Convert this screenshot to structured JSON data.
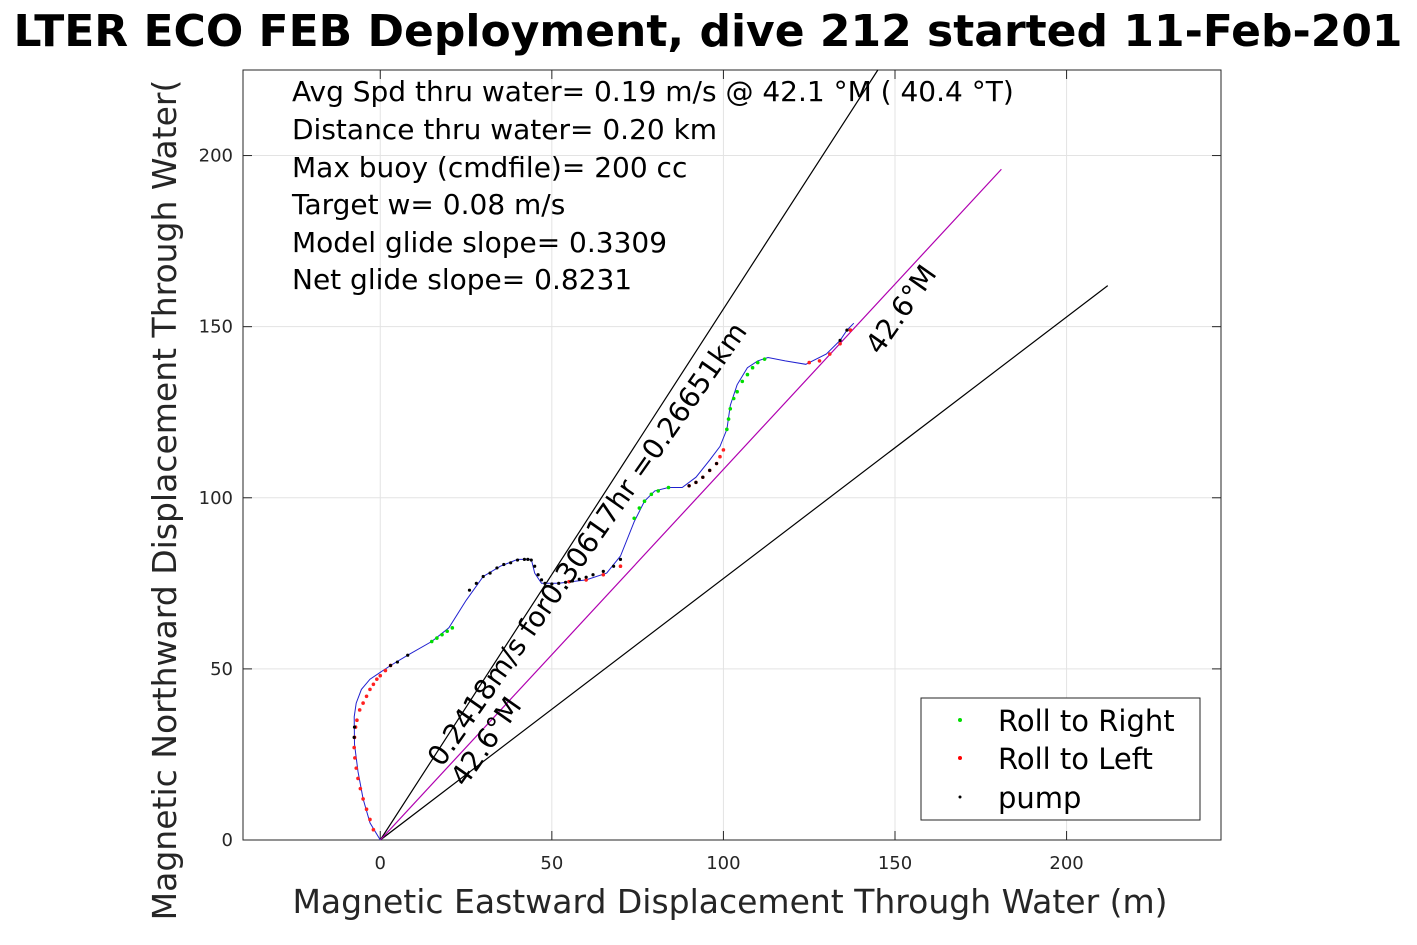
{
  "chart_data": {
    "type": "line",
    "title": "LTER ECO FEB Deployment, dive 212 started 11-Feb-201",
    "xlabel": "Magnetic Eastward Displacement Through Water (m)",
    "ylabel": "Magnetic Northward Displacement Through Water(",
    "xlim": [
      -40,
      245
    ],
    "ylim": [
      0,
      225
    ],
    "xticks": [
      0,
      50,
      100,
      150,
      200
    ],
    "yticks": [
      0,
      50,
      100,
      150,
      200
    ],
    "xtick_labels": [
      "0",
      "50",
      "100",
      "150",
      "200"
    ],
    "ytick_labels": [
      "0",
      "50",
      "100",
      "150",
      "200"
    ],
    "grid": true,
    "info_lines": [
      "Avg Spd thru water=  0.19 m/s @  42.1 °M ( 40.4 °T)",
      "Distance thru water=  0.20 km",
      "Max buoy (cmdfile)= 200 cc",
      "Target w= 0.08 m/s",
      "Model glide slope= 0.3309",
      "Net glide slope= 0.8231"
    ],
    "annotations": {
      "speed_text": "0.2418m/s for0.30617hr =0.26651km",
      "heading_low": "42.6°M",
      "heading_high": "42.6°M"
    },
    "reference_lines": [
      {
        "name": "upper",
        "x": [
          0,
          145
        ],
        "y": [
          0,
          225
        ],
        "color": "#000000"
      },
      {
        "name": "lower",
        "x": [
          0,
          212
        ],
        "y": [
          0,
          162
        ],
        "color": "#000000"
      },
      {
        "name": "heading",
        "x": [
          0,
          181
        ],
        "y": [
          0,
          196
        ],
        "color": "#b000b0"
      }
    ],
    "series": [
      {
        "name": "track",
        "color": "#2020d0",
        "x": [
          0,
          -3,
          -5,
          -6.5,
          -7.5,
          -7.6,
          -7,
          -5.5,
          -3,
          0,
          3,
          8,
          15,
          20,
          25,
          30,
          35,
          40,
          44,
          45,
          47,
          52,
          60,
          66,
          70,
          74,
          77,
          80,
          84,
          88,
          92,
          96,
          99,
          101,
          102,
          104,
          107,
          110,
          113,
          118,
          124,
          130,
          134,
          136,
          138
        ],
        "y": [
          0,
          5,
          12,
          20,
          28,
          36,
          40,
          44,
          47,
          49,
          51,
          54,
          58,
          62,
          70,
          77,
          80,
          82,
          82,
          78,
          75,
          75,
          76,
          78,
          83,
          93,
          99,
          102,
          103,
          103,
          106,
          111,
          115,
          120,
          127,
          133,
          138,
          140,
          141,
          140,
          139,
          142,
          146,
          149,
          151
        ]
      },
      {
        "name": "Roll to Right",
        "color": "#00dd00",
        "x": [
          15,
          16.5,
          18,
          19.5,
          21,
          74,
          75.5,
          77,
          79,
          81,
          84,
          101,
          101.5,
          102,
          103,
          104,
          105.5,
          107,
          108.5,
          110,
          112
        ],
        "y": [
          58,
          59,
          60,
          61,
          62,
          94,
          97,
          99,
          101,
          102,
          103,
          120,
          123,
          126,
          129,
          131,
          134,
          136,
          138,
          139.5,
          140.5
        ]
      },
      {
        "name": "Roll to Left",
        "color": "#ff2020",
        "x": [
          -2,
          -3,
          -4,
          -5,
          -5.8,
          -6.5,
          -7,
          -7.4,
          -7.6,
          -7.5,
          -7.2,
          -6.8,
          -6,
          -5,
          -4,
          -3,
          -2,
          -1,
          0,
          1.5,
          3,
          55,
          60,
          65,
          70,
          90,
          92,
          94,
          96,
          98,
          99,
          100,
          125,
          128,
          131,
          134,
          137
        ],
        "y": [
          3,
          6,
          9,
          12,
          15,
          18,
          21,
          24,
          27,
          30,
          33,
          35,
          38,
          40,
          42,
          44,
          45.5,
          47,
          48,
          49.5,
          51,
          75.5,
          76,
          77.5,
          80,
          103.5,
          104.5,
          106,
          108,
          110,
          112,
          114,
          139.5,
          140,
          142,
          145,
          149
        ]
      },
      {
        "name": "pump",
        "color": "#000000",
        "x": [
          -7.5,
          -7.6,
          3,
          5,
          8,
          26,
          28,
          30,
          32,
          34,
          36,
          38,
          40,
          42,
          43,
          44,
          45,
          46,
          47,
          48,
          50,
          52,
          54,
          56,
          58,
          60,
          62,
          65,
          68,
          70,
          90,
          92,
          94,
          96,
          98,
          134,
          136
        ],
        "y": [
          33,
          30,
          51,
          52,
          54,
          73,
          75,
          77,
          78,
          79.5,
          80.5,
          81,
          81.8,
          82,
          82,
          81.8,
          80,
          77.5,
          76,
          75,
          74.8,
          75,
          75.3,
          75.7,
          76.2,
          76.8,
          77.5,
          78.5,
          80,
          82,
          103.5,
          104.5,
          106,
          108,
          110,
          146,
          149
        ]
      }
    ],
    "legend": {
      "placement": "bottom-right",
      "entries": [
        {
          "label": "Roll to Right",
          "color": "#00dd00"
        },
        {
          "label": "Roll to Left",
          "color": "#ff0000"
        },
        {
          "label": "pump",
          "color": "#000000"
        }
      ]
    }
  }
}
